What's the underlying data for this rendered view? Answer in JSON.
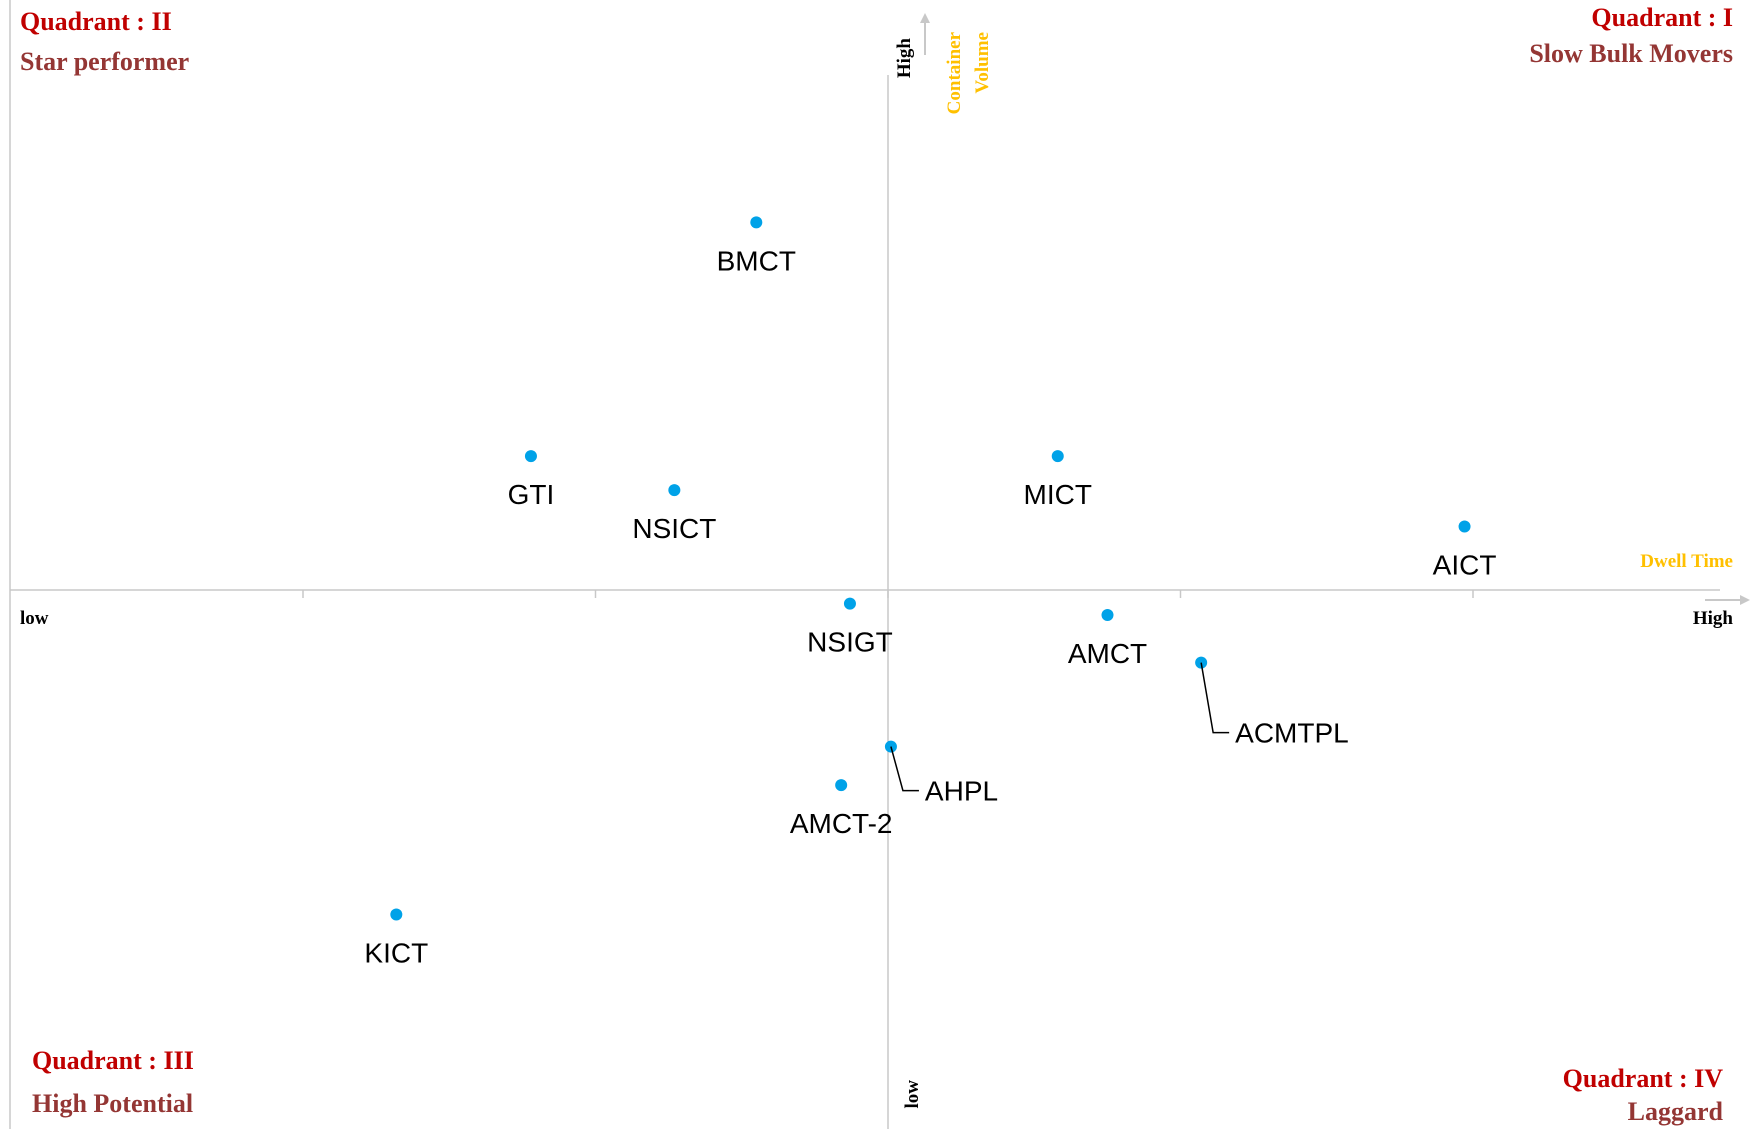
{
  "colors": {
    "marker": "#00a2e8",
    "axis": "#c8c8c8",
    "quadrant_title": "#c00000",
    "quadrant_subtitle": "#943634",
    "axis_name": "#ffc000"
  },
  "quadrants": {
    "q1": {
      "title": "Quadrant : I",
      "subtitle": "Slow Bulk Movers"
    },
    "q2": {
      "title": "Quadrant : II",
      "subtitle": "Star performer"
    },
    "q3": {
      "title": "Quadrant : III",
      "subtitle": "High Potential"
    },
    "q4": {
      "title": "Quadrant : IV",
      "subtitle": "Laggard"
    }
  },
  "axes": {
    "x_name": "Dwell Time",
    "x_low": "low",
    "x_high": "High",
    "y_name_line1": "Container",
    "y_name_line2": "Volume",
    "y_high": "High",
    "y_low": "low"
  },
  "chart_data": {
    "type": "scatter",
    "xlabel": "Dwell Time",
    "ylabel": "Container Volume",
    "xlim": [
      -3,
      3
    ],
    "ylim": [
      -2.6,
      2.6
    ],
    "grid": false,
    "points": [
      {
        "label": "BMCT",
        "x": -0.45,
        "y": 1.62
      },
      {
        "label": "GTI",
        "x": -1.22,
        "y": 0.59
      },
      {
        "label": "NSICT",
        "x": -0.73,
        "y": 0.44
      },
      {
        "label": "MICT",
        "x": 0.58,
        "y": 0.59
      },
      {
        "label": "AICT",
        "x": 1.97,
        "y": 0.28
      },
      {
        "label": "NSIGT",
        "x": -0.13,
        "y": -0.06
      },
      {
        "label": "AMCT",
        "x": 0.75,
        "y": -0.11
      },
      {
        "label": "ACMTPL",
        "x": 1.07,
        "y": -0.32
      },
      {
        "label": "AHPL",
        "x": 0.01,
        "y": -0.69
      },
      {
        "label": "AMCT-2",
        "x": -0.16,
        "y": -0.86
      },
      {
        "label": "KICT",
        "x": -1.68,
        "y": -1.43
      }
    ]
  }
}
